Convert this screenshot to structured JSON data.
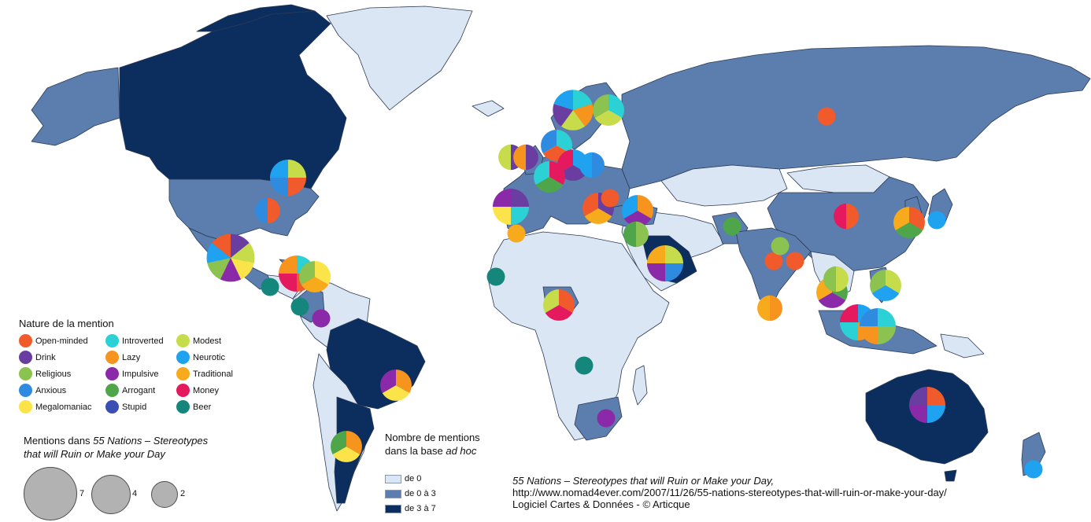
{
  "legend_nature": {
    "title": "Nature de la mention",
    "items": [
      {
        "label": "Open-minded",
        "color": "#f15a2b"
      },
      {
        "label": "Drink",
        "color": "#6a3da0"
      },
      {
        "label": "Religious",
        "color": "#8cc350"
      },
      {
        "label": "Anxious",
        "color": "#2f8be0"
      },
      {
        "label": "Megalomaniac",
        "color": "#fbe34a"
      },
      {
        "label": "Introverted",
        "color": "#2bd1d5"
      },
      {
        "label": "Lazy",
        "color": "#f7941e"
      },
      {
        "label": "Impulsive",
        "color": "#8b2aa8"
      },
      {
        "label": "Arrogant",
        "color": "#4fa64a"
      },
      {
        "label": "Stupid",
        "color": "#3b4fb3"
      },
      {
        "label": "Modest",
        "color": "#c6dc4a"
      },
      {
        "label": "Neurotic",
        "color": "#1fa2ef"
      },
      {
        "label": "Traditional",
        "color": "#f6aa1c"
      },
      {
        "label": "Money",
        "color": "#e5195e"
      },
      {
        "label": "Beer",
        "color": "#15867c"
      }
    ]
  },
  "legend_size": {
    "title_plain": "Mentions dans ",
    "title_italic": "55 Nations – Stereotypes",
    "title_line2": "that will Ruin or Make your Day",
    "sizes": [
      {
        "value": "7"
      },
      {
        "value": "4"
      },
      {
        "value": "2"
      }
    ]
  },
  "legend_count": {
    "title_line1": "Nombre de mentions",
    "title_line2_plain": "dans la base ",
    "title_line2_italic": "ad hoc",
    "classes": [
      {
        "label": "de 0",
        "color": "#dbe6f5"
      },
      {
        "label": "de 0 à 3",
        "color": "#5b7eae"
      },
      {
        "label": "de 3 à 7",
        "color": "#0c2e5e"
      }
    ]
  },
  "source": {
    "line1": "55 Nations – Stereotypes that will Ruin or Make your Day,",
    "line2": "http://www.nomad4ever.com/2007/11/26/55-nations-stereotypes-that-will-ruin-or-make-your-day/",
    "line3": "Logiciel Cartes & Données - © Articque"
  },
  "map_data": {
    "colors": {
      "sea": "#ffffff",
      "border": "#2b3a55"
    },
    "choropleth": [
      {
        "region": "Canada",
        "class": "de 3 à 7"
      },
      {
        "region": "United States",
        "class": "de 0 à 3"
      },
      {
        "region": "Mexico",
        "class": "de 0 à 3"
      },
      {
        "region": "Brazil",
        "class": "de 3 à 7"
      },
      {
        "region": "Argentina",
        "class": "de 3 à 7"
      },
      {
        "region": "Russia",
        "class": "de 0 à 3"
      },
      {
        "region": "China",
        "class": "de 0 à 3"
      },
      {
        "region": "India",
        "class": "de 0 à 3"
      },
      {
        "region": "Australia",
        "class": "de 3 à 7"
      },
      {
        "region": "South Africa",
        "class": "de 0 à 3"
      },
      {
        "region": "Greenland",
        "class": "de 0"
      },
      {
        "region": "Africa (most)",
        "class": "de 0"
      }
    ],
    "pies": [
      {
        "region": "Canada",
        "mentions": 4,
        "slices": [
          "Modest",
          "Open-minded",
          "Anxious",
          "Neurotic"
        ]
      },
      {
        "region": "United States",
        "mentions": 2,
        "slices": [
          "Open-minded",
          "Anxious"
        ]
      },
      {
        "region": "Mexico",
        "mentions": 7,
        "slices": [
          "Drink",
          "Modest",
          "Megalomaniac",
          "Impulsive",
          "Religious",
          "Neurotic",
          "Open-minded"
        ]
      },
      {
        "region": "Caribbean",
        "mentions": 4,
        "slices": [
          "Introverted",
          "Open-minded",
          "Money",
          "Lazy"
        ]
      },
      {
        "region": "Venezuela",
        "mentions": 3,
        "slices": [
          "Megalomaniac",
          "Traditional",
          "Religious"
        ]
      },
      {
        "region": "Guatemala",
        "mentions": 1,
        "slices": [
          "Beer"
        ]
      },
      {
        "region": "Colombia",
        "mentions": 1,
        "slices": [
          "Beer"
        ]
      },
      {
        "region": "Ecuador",
        "mentions": 1,
        "slices": [
          "Impulsive"
        ]
      },
      {
        "region": "Brazil",
        "mentions": 3,
        "slices": [
          "Lazy",
          "Megalomaniac",
          "Impulsive"
        ]
      },
      {
        "region": "Argentina",
        "mentions": 3,
        "slices": [
          "Lazy",
          "Megalomaniac",
          "Arrogant"
        ]
      },
      {
        "region": "Scandinavia",
        "mentions": 5,
        "slices": [
          "Introverted",
          "Lazy",
          "Modest",
          "Drink",
          "Neurotic"
        ]
      },
      {
        "region": "Finland",
        "mentions": 3,
        "slices": [
          "Introverted",
          "Modest",
          "Religious"
        ]
      },
      {
        "region": "Russia",
        "mentions": 1,
        "slices": [
          "Open-minded"
        ]
      },
      {
        "region": "Ireland",
        "mentions": 2,
        "slices": [
          "Drink",
          "Modest"
        ]
      },
      {
        "region": "United Kingdom",
        "mentions": 2,
        "slices": [
          "Drink",
          "Lazy"
        ]
      },
      {
        "region": "Netherlands",
        "mentions": 3,
        "slices": [
          "Introverted",
          "Open-minded",
          "Anxious"
        ]
      },
      {
        "region": "Germany",
        "mentions": 3,
        "slices": [
          "Neurotic",
          "Drink",
          "Money"
        ]
      },
      {
        "region": "Poland",
        "mentions": 2,
        "slices": [
          "Anxious",
          "Neurotic"
        ]
      },
      {
        "region": "France",
        "mentions": 3,
        "slices": [
          "Money",
          "Arrogant",
          "Introverted"
        ]
      },
      {
        "region": "Spain",
        "mentions": 4,
        "slices": [
          "Drink",
          "Introverted",
          "Megalomaniac",
          "Impulsive"
        ]
      },
      {
        "region": "Portugal",
        "mentions": 1,
        "slices": [
          "Traditional"
        ]
      },
      {
        "region": "Italy",
        "mentions": 3,
        "slices": [
          "Drink",
          "Traditional",
          "Open-minded"
        ]
      },
      {
        "region": "Greece",
        "mentions": 1,
        "slices": [
          "Open-minded"
        ]
      },
      {
        "region": "Turkey",
        "mentions": 3,
        "slices": [
          "Lazy",
          "Impulsive",
          "Neurotic"
        ]
      },
      {
        "region": "Israel",
        "mentions": 2,
        "slices": [
          "Religious",
          "Arrogant"
        ]
      },
      {
        "region": "Saudi Arabia",
        "mentions": 4,
        "slices": [
          "Modest",
          "Anxious",
          "Impulsive",
          "Traditional"
        ]
      },
      {
        "region": "Pakistan",
        "mentions": 1,
        "slices": [
          "Arrogant"
        ]
      },
      {
        "region": "India",
        "mentions": 1,
        "slices": [
          "Open-minded"
        ]
      },
      {
        "region": "Nepal",
        "mentions": 1,
        "slices": [
          "Religious"
        ]
      },
      {
        "region": "Bangladesh",
        "mentions": 1,
        "slices": [
          "Open-minded"
        ]
      },
      {
        "region": "Sri Lanka",
        "mentions": 2,
        "slices": [
          "Lazy",
          "Traditional"
        ]
      },
      {
        "region": "China",
        "mentions": 2,
        "slices": [
          "Open-minded",
          "Money"
        ]
      },
      {
        "region": "Korea",
        "mentions": 3,
        "slices": [
          "Open-minded",
          "Arrogant",
          "Traditional"
        ]
      },
      {
        "region": "Japan",
        "mentions": 1,
        "slices": [
          "Neurotic"
        ]
      },
      {
        "region": "Thailand",
        "mentions": 3,
        "slices": [
          "Arrogant",
          "Impulsive",
          "Traditional"
        ]
      },
      {
        "region": "Vietnam",
        "mentions": 2,
        "slices": [
          "Modest",
          "Religious"
        ]
      },
      {
        "region": "Philippines",
        "mentions": 3,
        "slices": [
          "Modest",
          "Neurotic",
          "Religious"
        ]
      },
      {
        "region": "Malaysia",
        "mentions": 4,
        "slices": [
          "Neurotic",
          "Lazy",
          "Introverted",
          "Money"
        ]
      },
      {
        "region": "Indonesia",
        "mentions": 4,
        "slices": [
          "Introverted",
          "Religious",
          "Lazy",
          "Anxious"
        ]
      },
      {
        "region": "Nigeria",
        "mentions": 3,
        "slices": [
          "Open-minded",
          "Money",
          "Modest"
        ]
      },
      {
        "region": "Senegal",
        "mentions": 1,
        "slices": [
          "Beer"
        ]
      },
      {
        "region": "Tanzania",
        "mentions": 1,
        "slices": [
          "Beer"
        ]
      },
      {
        "region": "South Africa",
        "mentions": 1,
        "slices": [
          "Impulsive"
        ]
      },
      {
        "region": "Australia",
        "mentions": 4,
        "slices": [
          "Open-minded",
          "Neurotic",
          "Impulsive",
          "Drink"
        ]
      },
      {
        "region": "New Zealand",
        "mentions": 1,
        "slices": [
          "Neurotic"
        ]
      }
    ]
  }
}
